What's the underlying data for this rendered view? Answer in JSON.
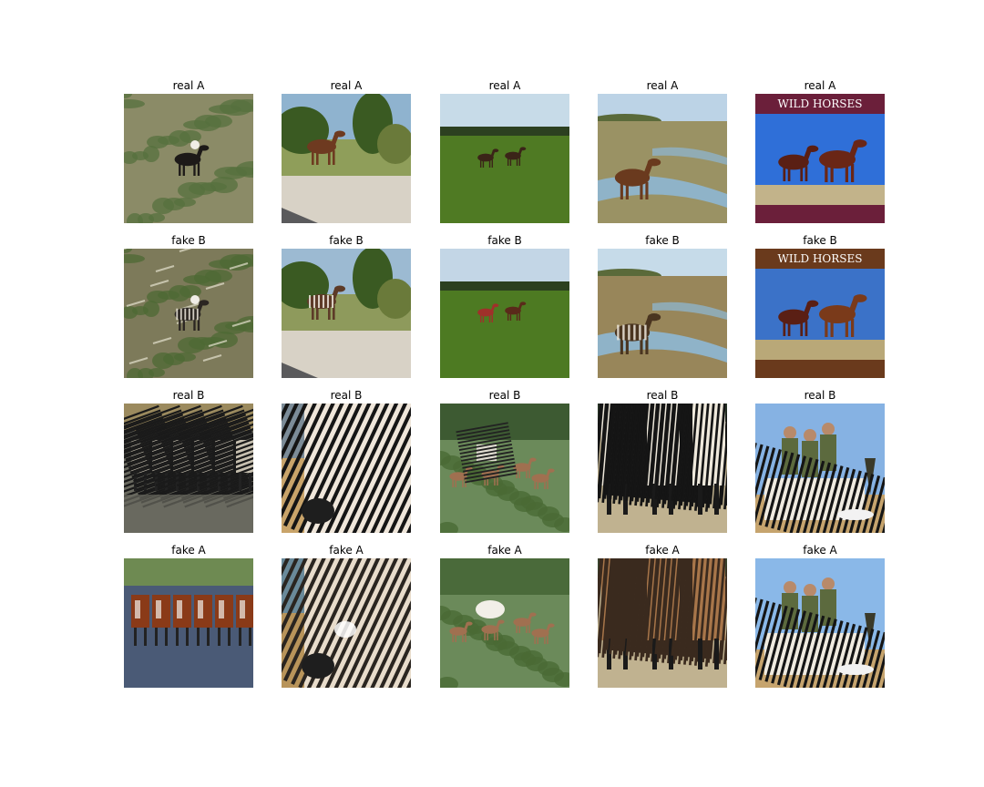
{
  "rows": [
    {
      "label": "real A",
      "cells": [
        {
          "scene": "hillside-pinto-horse",
          "colors": {
            "sky": "#8e8a6e",
            "ground": "#8b8b67",
            "accent": "#56703e",
            "subject": "#1d1a18"
          }
        },
        {
          "scene": "brown-horse-grazing-bushes",
          "colors": {
            "sky": "#8fb3cf",
            "ground": "#8f9e5a",
            "accent": "#3a5a22",
            "subject": "#6e3a20"
          }
        },
        {
          "scene": "two-horses-green-field",
          "colors": {
            "sky": "#c7dbe8",
            "ground": "#4f7a23",
            "accent": "#2c4020",
            "subject": "#3b2418"
          }
        },
        {
          "scene": "horse-drinking-marsh",
          "colors": {
            "sky": "#bcd3e6",
            "ground": "#9a9264",
            "accent": "#8fb3c8",
            "subject": "#6a3a1e"
          }
        },
        {
          "scene": "wild-horses-calendar",
          "text": "WILD HORSES",
          "colors": {
            "sky": "#2f6fd8",
            "ground": "#c2b38a",
            "accent": "#6b1f3a",
            "subject": "#6a2616"
          }
        }
      ]
    },
    {
      "label": "fake B",
      "cells": [
        {
          "scene": "hillside-striped-horse",
          "colors": {
            "sky": "#6f6a52",
            "ground": "#7d7a5a",
            "accent": "#4d6a34",
            "subject": "#2b2622"
          }
        },
        {
          "scene": "striped-horse-grazing-bushes",
          "colors": {
            "sky": "#9cbad2",
            "ground": "#8e9a5c",
            "accent": "#3a5a22",
            "subject": "#5d3b28"
          }
        },
        {
          "scene": "two-horses-green-field-tinted",
          "colors": {
            "sky": "#c3d6e6",
            "ground": "#4d7a22",
            "accent": "#2c4020",
            "subject": "#a0302a"
          }
        },
        {
          "scene": "striped-horse-drinking-marsh",
          "colors": {
            "sky": "#c6dbe9",
            "ground": "#98865a",
            "accent": "#8fb3c8",
            "subject": "#4a3520"
          }
        },
        {
          "scene": "wild-horses-calendar-tinted",
          "text": "WILD HORSES",
          "colors": {
            "sky": "#3b72c8",
            "ground": "#b9a878",
            "accent": "#6a3a1c",
            "subject": "#7a3a1a"
          }
        }
      ]
    },
    {
      "label": "real B",
      "cells": [
        {
          "scene": "zebras-drinking-water",
          "colors": {
            "sky": "#9b8a5e",
            "ground": "#6a6a60",
            "accent": "#c7c0b0",
            "subject": "#1a1a1a"
          }
        },
        {
          "scene": "zebra-head-closeup",
          "colors": {
            "sky": "#7c8c98",
            "ground": "#c9a46a",
            "accent": "#efe6da",
            "subject": "#151515"
          }
        },
        {
          "scene": "zebra-and-antelopes-bush",
          "colors": {
            "sky": "#3d5a32",
            "ground": "#6b8a5a",
            "accent": "#a07050",
            "subject": "#e0dcd0"
          }
        },
        {
          "scene": "zebras-grazing-closeup",
          "colors": {
            "sky": "#2c3a2a",
            "ground": "#c0b290",
            "accent": "#efe9dc",
            "subject": "#151515"
          }
        },
        {
          "scene": "hunters-with-zebra",
          "colors": {
            "sky": "#86b2e3",
            "ground": "#c6a46e",
            "accent": "#5c6a3e",
            "subject": "#151515"
          }
        }
      ]
    },
    {
      "label": "fake A",
      "cells": [
        {
          "scene": "brown-horses-drinking-water",
          "colors": {
            "sky": "#6e8a52",
            "ground": "#4a5a76",
            "accent": "#c2d0de",
            "subject": "#8a3a18"
          }
        },
        {
          "scene": "striped-head-closeup-fake",
          "colors": {
            "sky": "#6a8a9a",
            "ground": "#b8945a",
            "accent": "#e8dccb",
            "subject": "#2a2520"
          }
        },
        {
          "scene": "horse-and-antelopes-bush",
          "colors": {
            "sky": "#4a6a3a",
            "ground": "#6b8a5a",
            "accent": "#a07050",
            "subject": "#f2efe8"
          }
        },
        {
          "scene": "striped-grazing-fake",
          "colors": {
            "sky": "#3a4a32",
            "ground": "#c0b290",
            "accent": "#a8764a",
            "subject": "#3a2a1e"
          }
        },
        {
          "scene": "hunters-with-zebra-fake",
          "colors": {
            "sky": "#8ab8e8",
            "ground": "#c6a46e",
            "accent": "#5c6a3e",
            "subject": "#151515"
          }
        }
      ]
    }
  ]
}
